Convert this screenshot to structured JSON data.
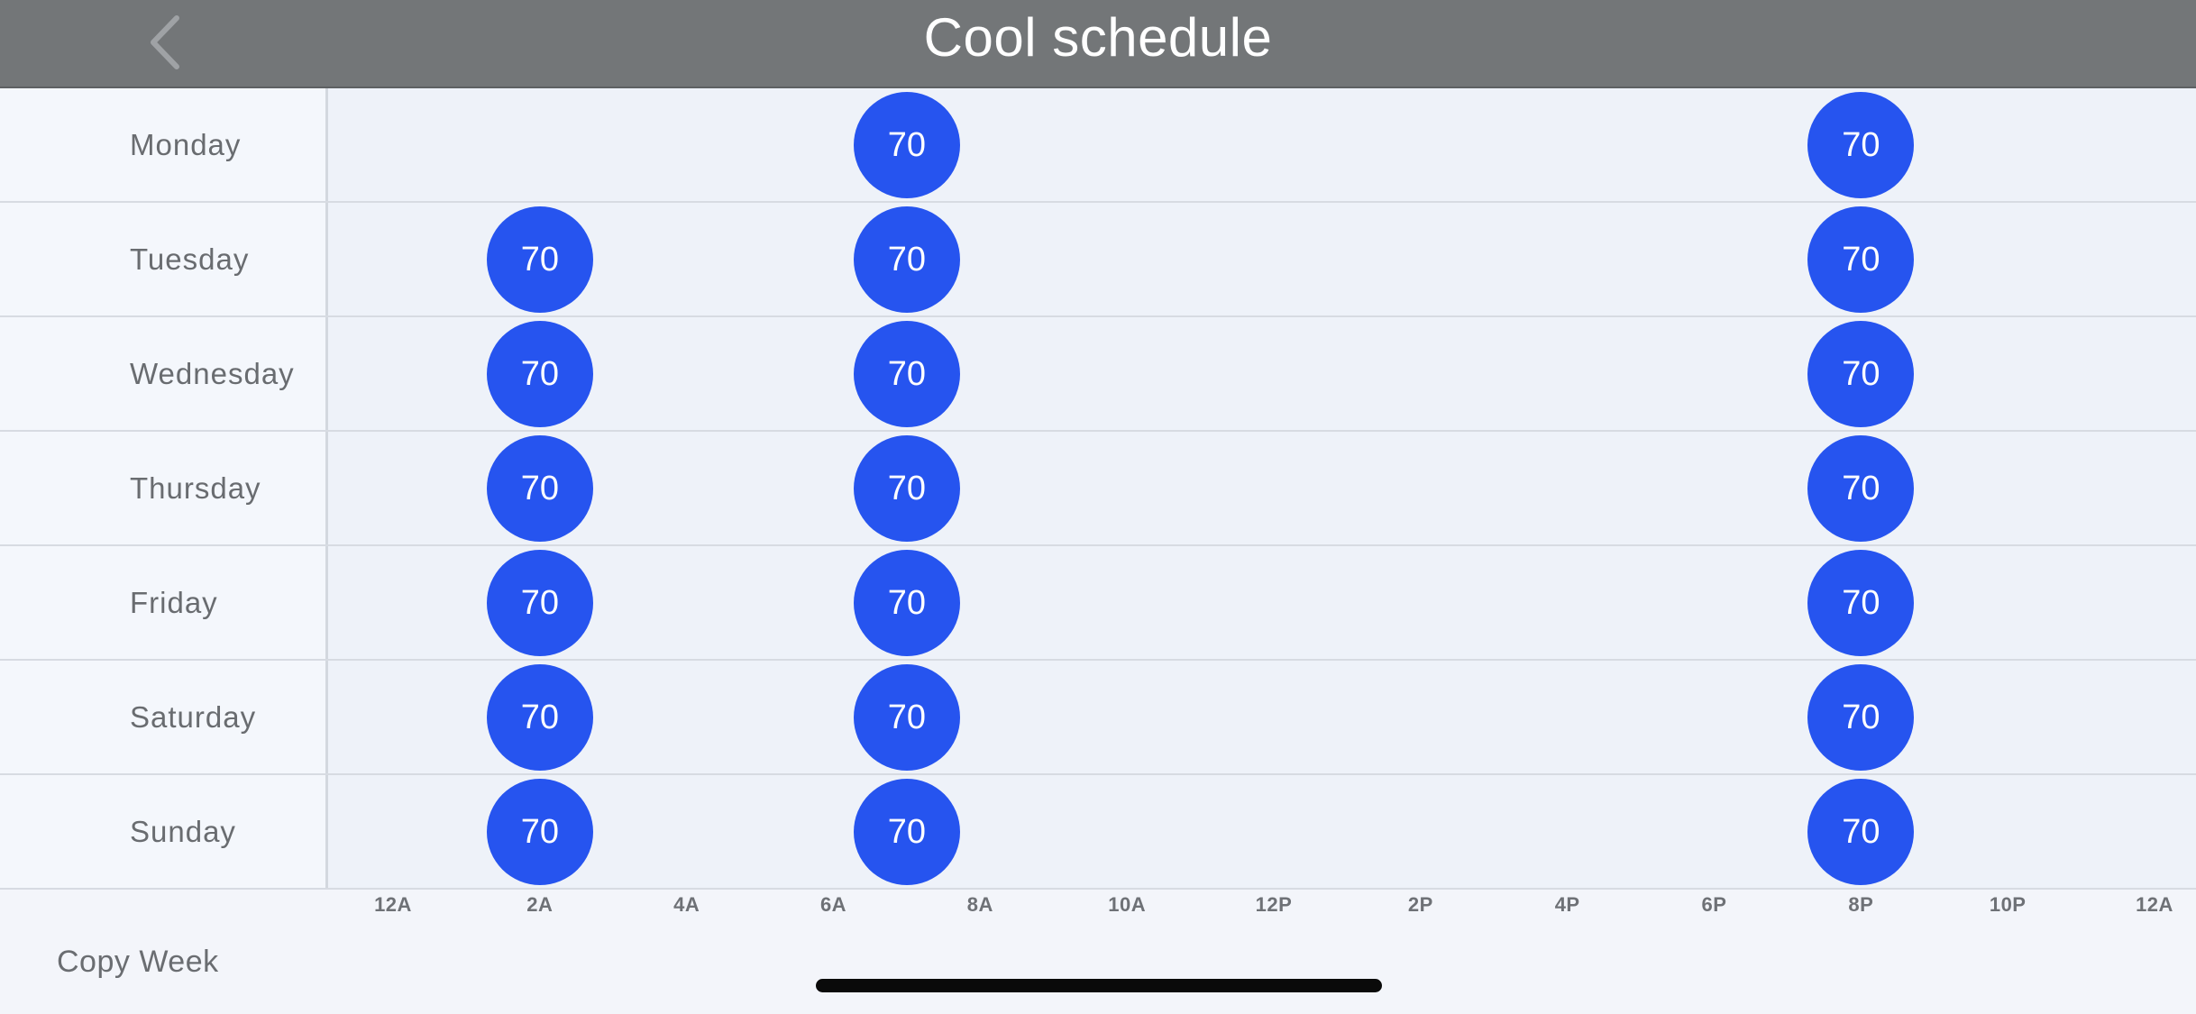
{
  "header": {
    "title": "Cool schedule",
    "back_icon": "chevron-left-icon"
  },
  "schedule": {
    "days": [
      {
        "name": "Monday",
        "setpoints": [
          {
            "time": "7:00 AM",
            "temp": "70"
          },
          {
            "time": "8:00 PM",
            "temp": "70"
          }
        ]
      },
      {
        "name": "Tuesday",
        "setpoints": [
          {
            "time": "2:00 AM",
            "temp": "70"
          },
          {
            "time": "7:00 AM",
            "temp": "70"
          },
          {
            "time": "8:00 PM",
            "temp": "70"
          }
        ]
      },
      {
        "name": "Wednesday",
        "setpoints": [
          {
            "time": "2:00 AM",
            "temp": "70"
          },
          {
            "time": "7:00 AM",
            "temp": "70"
          },
          {
            "time": "8:00 PM",
            "temp": "70"
          }
        ]
      },
      {
        "name": "Thursday",
        "setpoints": [
          {
            "time": "2:00 AM",
            "temp": "70"
          },
          {
            "time": "7:00 AM",
            "temp": "70"
          },
          {
            "time": "8:00 PM",
            "temp": "70"
          }
        ]
      },
      {
        "name": "Friday",
        "setpoints": [
          {
            "time": "2:00 AM",
            "temp": "70"
          },
          {
            "time": "7:00 AM",
            "temp": "70"
          },
          {
            "time": "8:00 PM",
            "temp": "70"
          }
        ]
      },
      {
        "name": "Saturday",
        "setpoints": [
          {
            "time": "2:00 AM",
            "temp": "70"
          },
          {
            "time": "7:00 AM",
            "temp": "70"
          },
          {
            "time": "8:00 PM",
            "temp": "70"
          }
        ]
      },
      {
        "name": "Sunday",
        "setpoints": [
          {
            "time": "2:00 AM",
            "temp": "70"
          },
          {
            "time": "7:00 AM",
            "temp": "70"
          },
          {
            "time": "8:00 PM",
            "temp": "70"
          }
        ]
      }
    ],
    "axis_labels": [
      "12A",
      "2A",
      "4A",
      "6A",
      "8A",
      "10A",
      "12P",
      "2P",
      "4P",
      "6P",
      "8P",
      "10P",
      "12A"
    ]
  },
  "footer": {
    "copy_week_label": "Copy Week"
  },
  "colors": {
    "header_bg": "#737678",
    "setpoint": "#2654ef",
    "background": "#eef2f9"
  }
}
